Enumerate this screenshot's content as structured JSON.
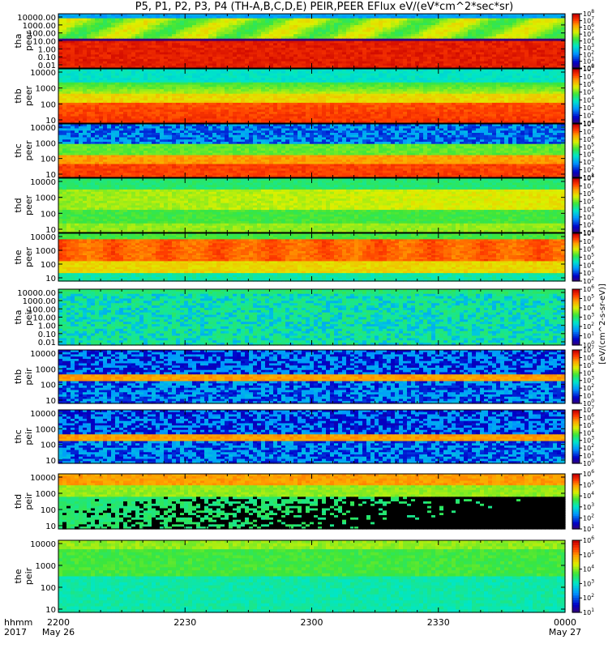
{
  "title": "P5, P1, P2, P3, P4 (TH-A,B,C,D,E) PEIR,PEER EFlux eV/(eV*cm^2*sec*sr)",
  "colorbar_units": "[eV/(cm^2-s-sr-eV)]",
  "x_axis": {
    "row1_label": "hhmm",
    "row2_label": "2017",
    "ticks": [
      {
        "t": 0,
        "label": "2200",
        "date": "May 26"
      },
      {
        "t": 30,
        "label": "2230",
        "date": ""
      },
      {
        "t": 60,
        "label": "2300",
        "date": ""
      },
      {
        "t": 90,
        "label": "2330",
        "date": ""
      },
      {
        "t": 120,
        "label": "0000",
        "date": "May 27"
      }
    ]
  },
  "chart_data": [
    {
      "type": "heatmap",
      "probe": "tha",
      "product": "peer",
      "yticks": [
        "10000.00",
        "1000.00",
        "100.00",
        "10.00",
        "1.00",
        "0.10",
        "0.01"
      ],
      "colorbar": {
        "min_exp": 0,
        "max_exp": 8
      },
      "palette": "red-band"
    },
    {
      "type": "heatmap",
      "probe": "thb",
      "product": "peer",
      "yticks": [
        "10000",
        "1000",
        "100",
        "10"
      ],
      "colorbar": {
        "min_exp": 1,
        "max_exp": 8
      },
      "palette": "peer-warm"
    },
    {
      "type": "heatmap",
      "probe": "thc",
      "product": "peer",
      "yticks": [
        "10000",
        "1000",
        "100",
        "10"
      ],
      "colorbar": {
        "min_exp": 1,
        "max_exp": 8
      },
      "palette": "peer-noisy"
    },
    {
      "type": "heatmap",
      "probe": "thd",
      "product": "peer",
      "yticks": [
        "10000",
        "1000",
        "100",
        "10"
      ],
      "colorbar": {
        "min_exp": 1,
        "max_exp": 8
      },
      "palette": "peer-cool"
    },
    {
      "type": "heatmap",
      "probe": "the",
      "product": "peer",
      "yticks": [
        "10000",
        "1000",
        "100",
        "10"
      ],
      "colorbar": {
        "min_exp": 2,
        "max_exp": 8
      },
      "palette": "peer-hot"
    },
    {
      "type": "heatmap",
      "probe": "tha",
      "product": "peir",
      "yticks": [
        "10000.00",
        "1000.00",
        "100.00",
        "10.00",
        "1.00",
        "0.10",
        "0.01"
      ],
      "colorbar": {
        "min_exp": 0,
        "max_exp": 6
      },
      "palette": "peir-low"
    },
    {
      "type": "heatmap",
      "probe": "thb",
      "product": "peir",
      "yticks": [
        "10000",
        "1000",
        "100",
        "10"
      ],
      "colorbar": {
        "min_exp": 0,
        "max_exp": 7
      },
      "palette": "peir-noisy"
    },
    {
      "type": "heatmap",
      "probe": "thc",
      "product": "peir",
      "yticks": [
        "10000",
        "1000",
        "100",
        "10"
      ],
      "colorbar": {
        "min_exp": 0,
        "max_exp": 7
      },
      "palette": "peir-noisy"
    },
    {
      "type": "heatmap",
      "probe": "thd",
      "product": "peir",
      "yticks": [
        "10000",
        "1000",
        "100",
        "10"
      ],
      "colorbar": {
        "min_exp": 1,
        "max_exp": 6
      },
      "palette": "peir-black"
    },
    {
      "type": "heatmap",
      "probe": "the",
      "product": "peir",
      "yticks": [
        "10000",
        "1000",
        "100",
        "10"
      ],
      "colorbar": {
        "min_exp": 1,
        "max_exp": 6
      },
      "palette": "peir-green"
    }
  ]
}
